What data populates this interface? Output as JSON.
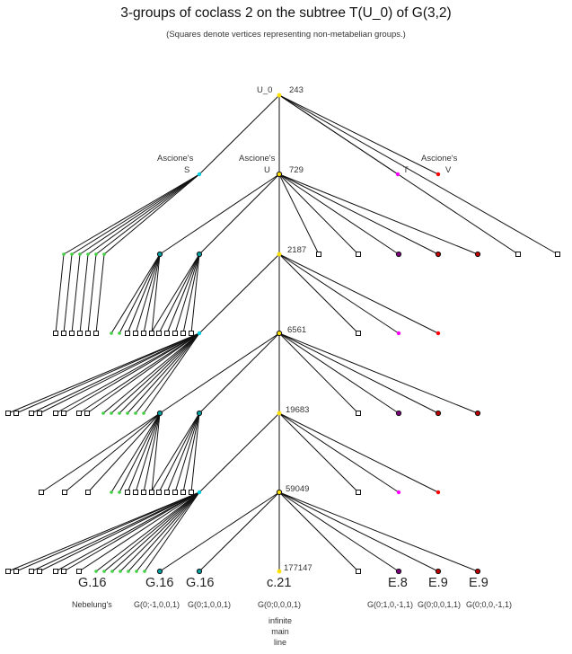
{
  "header": {
    "title": "3-groups of coclass 2 on the subtree T(U_0) of G(3,2)",
    "subtitle": "(Squares denote vertices representing non-metabelian groups.)"
  },
  "colors": {
    "edge": "#111111",
    "mainline": "#ffe000",
    "ascione_s": "#00d0e0",
    "ascione_t": "#ff00ff",
    "ascione_v": "#ff0000",
    "capable": "#00a0a0",
    "green": "#40d040",
    "purple": "#800080",
    "darkred": "#c00000"
  },
  "orders": [
    "243",
    "729",
    "2187",
    "6561",
    "19683",
    "59049",
    "177147"
  ],
  "vertex_labels": {
    "root": "U_0",
    "ascione_s_1": "Ascione's",
    "ascione_s_2": "S",
    "ascione_u_1": "Ascione's",
    "ascione_u_2": "U",
    "ascione_v_1": "Ascione's",
    "ascione_t": "T",
    "ascione_v_2": "V"
  },
  "bottom_big": {
    "g16_a": "G.16",
    "g16_b": "G.16",
    "g16_c": "G.16",
    "c21": "c.21",
    "e8": "E.8",
    "e9_a": "E.9",
    "e9_b": "E.9"
  },
  "bottom_small": {
    "nebelung": "Nebelung's",
    "g_a": "G(0;-1,0,0,1)",
    "g_b": "G(0;1,0,0,1)",
    "g_main": "G(0;0,0,0,1)",
    "g_e8": "G(0;1,0,-1,1)",
    "g_e9a": "G(0;0,0,1,1)",
    "g_e9b": "G(0;0,0,-1,1)"
  },
  "mainline_note": [
    "infinite",
    "main",
    "line"
  ]
}
